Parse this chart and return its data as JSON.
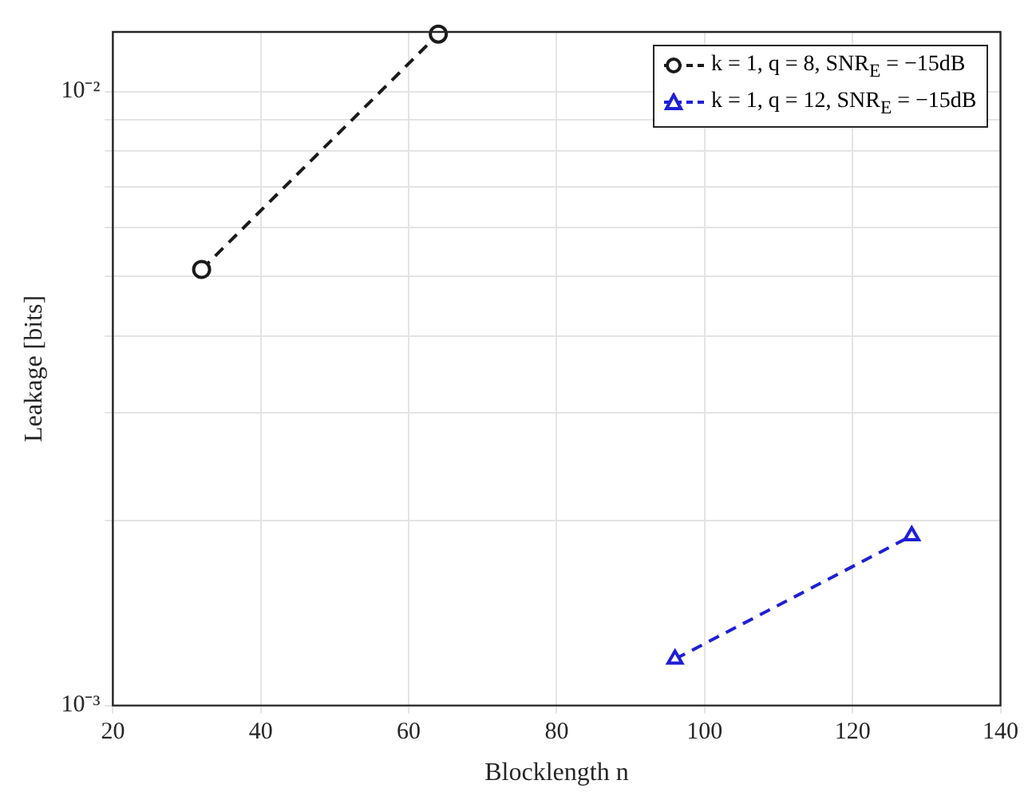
{
  "chart_data": {
    "type": "line",
    "xlabel": "Blocklength n",
    "ylabel": "Leakage [bits]",
    "series": [
      {
        "name": "k = 1, q = 8, SNR$_{E}$ = −15dB",
        "color": "#1a1a1a",
        "marker": "circle",
        "line_style": "dashed",
        "x": [
          32,
          64
        ],
        "values": [
          0.00513,
          0.0124
        ]
      },
      {
        "name": "k = 1, q = 12, SNR$_{E}$ = −15dB",
        "color": "#1f1fd6",
        "marker": "triangle",
        "line_style": "dashed",
        "x": [
          96,
          128
        ],
        "values": [
          0.00119,
          0.00189
        ]
      }
    ],
    "log": "y",
    "xlim": [
      20,
      140
    ],
    "xticks": [
      20,
      40,
      60,
      80,
      100,
      120,
      140
    ],
    "ylim": [
      0.001,
      0.0125
    ],
    "yticks": [
      {
        "value": 0.001,
        "label": "10⁻³"
      },
      {
        "value": 0.002,
        "label": null
      },
      {
        "value": 0.003,
        "label": null
      },
      {
        "value": 0.004,
        "label": null
      },
      {
        "value": 0.005,
        "label": null
      },
      {
        "value": 0.006,
        "label": null
      },
      {
        "value": 0.007,
        "label": null
      },
      {
        "value": 0.008,
        "label": null
      },
      {
        "value": 0.009,
        "label": null
      },
      {
        "value": 0.01,
        "label": "10⁻²"
      }
    ],
    "grid": true,
    "legend": "top right"
  }
}
